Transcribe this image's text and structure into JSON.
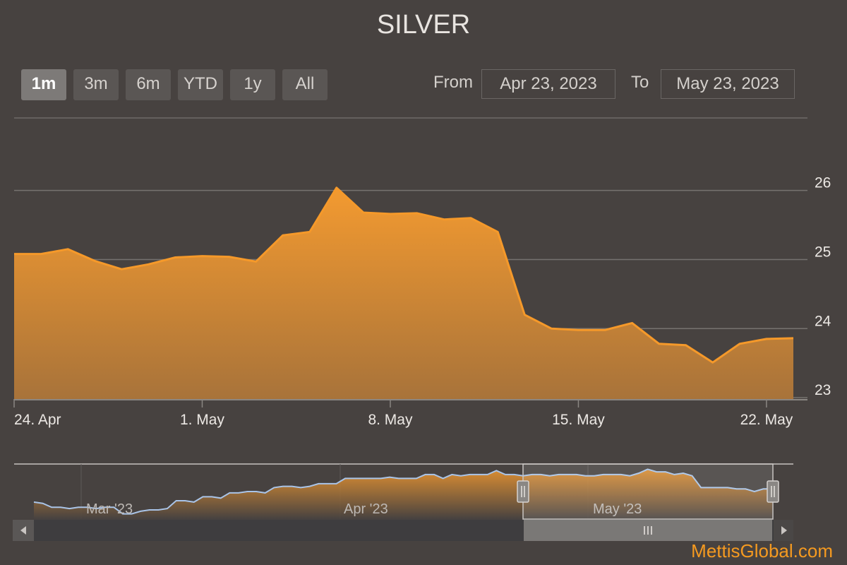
{
  "title": "SILVER",
  "range_selector": {
    "buttons": [
      {
        "label": "1m",
        "active": true
      },
      {
        "label": "3m",
        "active": false
      },
      {
        "label": "6m",
        "active": false
      },
      {
        "label": "YTD",
        "active": false
      },
      {
        "label": "1y",
        "active": false
      },
      {
        "label": "All",
        "active": false
      }
    ],
    "from_label": "From",
    "from_value": "Apr 23, 2023",
    "to_label": "To",
    "to_value": "May 23, 2023"
  },
  "colors": {
    "background": "#474240",
    "series_line": "#f5992a",
    "area_top": "#f39a30",
    "area_bottom": "#a8733a",
    "navigator_line": "#a9c4e8",
    "brand": "#f59a20"
  },
  "chart_data": {
    "type": "area",
    "title": "SILVER",
    "y_axis": {
      "position": "right",
      "ticks": [
        23,
        24,
        25,
        26
      ],
      "range": [
        22.98,
        27.05
      ]
    },
    "x_axis": {
      "range": [
        "2023-04-24",
        "2023-05-23"
      ],
      "ticks": [
        "24. Apr",
        "1. May",
        "8. May",
        "15. May",
        "22. May"
      ]
    },
    "grid": true,
    "series": [
      {
        "x": [
          "2023-04-24",
          "2023-04-25",
          "2023-04-26",
          "2023-04-27",
          "2023-04-28",
          "2023-04-29",
          "2023-04-30",
          "2023-05-01",
          "2023-05-02",
          "2023-05-03",
          "2023-05-04",
          "2023-05-05",
          "2023-05-06",
          "2023-05-07",
          "2023-05-08",
          "2023-05-09",
          "2023-05-10",
          "2023-05-11",
          "2023-05-12",
          "2023-05-13",
          "2023-05-14",
          "2023-05-15",
          "2023-05-16",
          "2023-05-17",
          "2023-05-18",
          "2023-05-19",
          "2023-05-20",
          "2023-05-21",
          "2023-05-22",
          "2023-05-23"
        ],
        "values": [
          25.08,
          25.08,
          25.15,
          24.98,
          24.86,
          24.93,
          25.03,
          25.05,
          25.04,
          24.97,
          25.35,
          25.4,
          26.04,
          25.68,
          25.66,
          25.67,
          25.58,
          25.6,
          25.4,
          24.2,
          24.0,
          23.98,
          23.98,
          24.08,
          23.78,
          23.76,
          23.51,
          23.78,
          23.85,
          23.86
        ]
      }
    ],
    "navigator": {
      "x_labels": [
        "Mar '23",
        "Apr '23",
        "May '23"
      ],
      "values": [
        24.2,
        24.1,
        23.8,
        23.8,
        23.7,
        23.8,
        23.8,
        23.7,
        23.8,
        23.8,
        23.3,
        23.3,
        23.5,
        23.6,
        23.6,
        23.7,
        24.3,
        24.3,
        24.2,
        24.6,
        24.6,
        24.5,
        24.9,
        24.9,
        25.0,
        25.0,
        24.9,
        25.3,
        25.4,
        25.4,
        25.3,
        25.4,
        25.6,
        25.6,
        25.6,
        26.0,
        26.0,
        26.0,
        26.0,
        26.0,
        26.1,
        26.0,
        26.0,
        26.0,
        26.3,
        26.3,
        26.0,
        26.3,
        26.2,
        26.3,
        26.3,
        26.3,
        26.6,
        26.3,
        26.3,
        26.2,
        26.3,
        26.3,
        26.2,
        26.3,
        26.3,
        26.3,
        26.2,
        26.2,
        26.3,
        26.3,
        26.3,
        26.2,
        26.4,
        26.7,
        26.5,
        26.5,
        26.3,
        26.4,
        26.2,
        25.3,
        25.3,
        25.3,
        25.3,
        25.2,
        25.2,
        25.0,
        25.2,
        25.2
      ],
      "selected_range": [
        "2023-04-23",
        "2023-05-23"
      ]
    }
  },
  "brand": "MettisGlobal.com"
}
